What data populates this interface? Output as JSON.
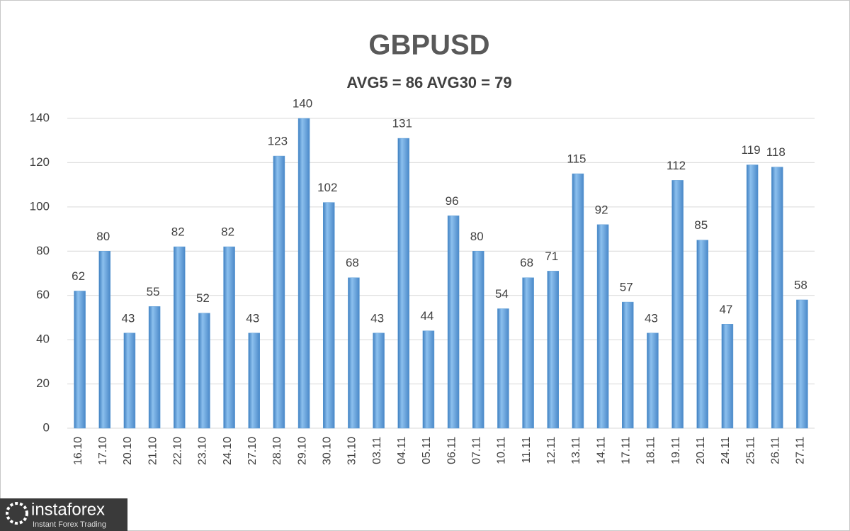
{
  "chart_data": {
    "type": "bar",
    "title": "GBPUSD",
    "subtitle": "AVG5 = 86 AVG30 = 79",
    "categories": [
      "16.10",
      "17.10",
      "20.10",
      "21.10",
      "22.10",
      "23.10",
      "24.10",
      "27.10",
      "28.10",
      "29.10",
      "30.10",
      "31.10",
      "03.11",
      "04.11",
      "05.11",
      "06.11",
      "07.11",
      "10.11",
      "11.11",
      "12.11",
      "13.11",
      "14.11",
      "17.11",
      "18.11",
      "19.11",
      "20.11",
      "24.11",
      "25.11",
      "26.11",
      "27.11"
    ],
    "values": [
      62,
      80,
      43,
      55,
      82,
      52,
      82,
      43,
      123,
      140,
      102,
      68,
      43,
      131,
      44,
      96,
      80,
      54,
      68,
      71,
      115,
      92,
      57,
      43,
      112,
      85,
      47,
      119,
      118,
      58
    ],
    "color": "#5b9bd5",
    "ylim": [
      0,
      140
    ],
    "yticks": [
      0,
      20,
      40,
      60,
      80,
      100,
      120,
      140
    ],
    "grid": true
  },
  "watermark": {
    "brand": "instaforex",
    "tagline": "Instant Forex Trading"
  }
}
